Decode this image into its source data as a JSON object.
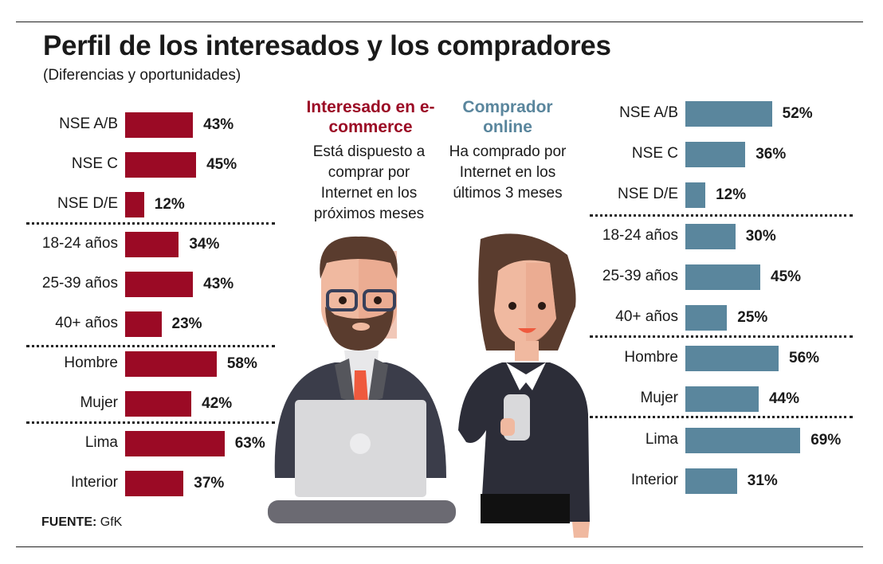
{
  "chart_data": {
    "type": "bar",
    "orientation": "horizontal",
    "title": "Perfil de los interesados y los compradores",
    "subtitle": "(Diferencias y oportunidades)",
    "categories": [
      "NSE A/B",
      "NSE C",
      "NSE D/E",
      "18-24 años",
      "25-39 años",
      "40+ años",
      "Hombre",
      "Mujer",
      "Lima",
      "Interior"
    ],
    "groups": [
      3,
      3,
      2,
      2
    ],
    "series": [
      {
        "name": "Interesado en e-commerce",
        "description": "Está dispuesto a comprar por Internet en los próximos meses",
        "color": "#9b0a25",
        "values": [
          43,
          45,
          12,
          34,
          43,
          23,
          58,
          42,
          63,
          37
        ]
      },
      {
        "name": "Comprador online",
        "description": "Ha comprado por Internet en los últimos 3 meses",
        "color": "#5a869d",
        "values": [
          52,
          36,
          12,
          30,
          45,
          25,
          56,
          44,
          69,
          31
        ]
      }
    ],
    "unit": "%",
    "grid": false
  },
  "source": {
    "label": "FUENTE:",
    "value": "GfK"
  },
  "illustration": {
    "icons": [
      "businessman-with-laptop",
      "businesswoman-with-phone"
    ]
  }
}
